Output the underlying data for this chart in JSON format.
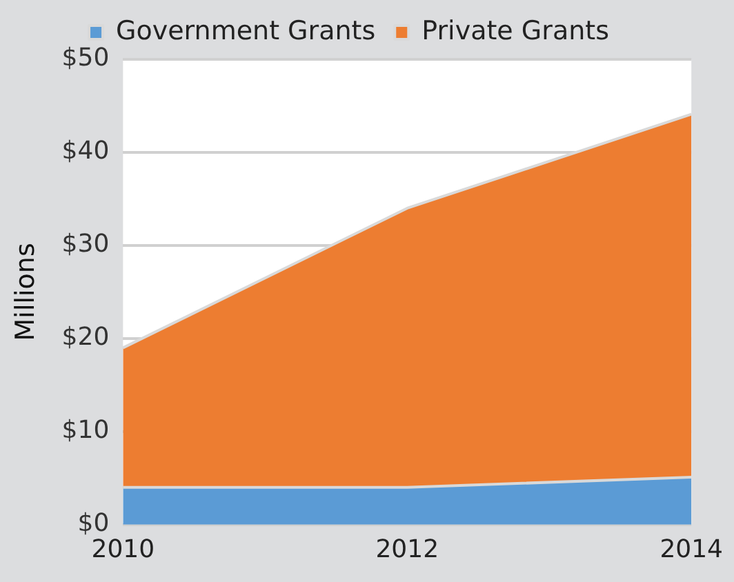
{
  "chart_data": {
    "type": "area",
    "stacked": true,
    "ylabel": "Millions",
    "categories": [
      "2010",
      "2012",
      "2014"
    ],
    "series": [
      {
        "name": "Government Grants",
        "color": "#5b9bd5",
        "values": [
          4,
          4,
          5.1
        ]
      },
      {
        "name": "Private Grants",
        "color": "#ed7d31",
        "values": [
          15,
          30,
          39
        ]
      }
    ],
    "ylim": [
      0,
      50
    ],
    "yticks": [
      {
        "value": 0,
        "label": "$0"
      },
      {
        "value": 10,
        "label": "$10"
      },
      {
        "value": 20,
        "label": "$20"
      },
      {
        "value": 30,
        "label": "$30"
      },
      {
        "value": 40,
        "label": "$40"
      },
      {
        "value": 50,
        "label": "$50"
      }
    ],
    "grid": "y",
    "legend": "top"
  }
}
